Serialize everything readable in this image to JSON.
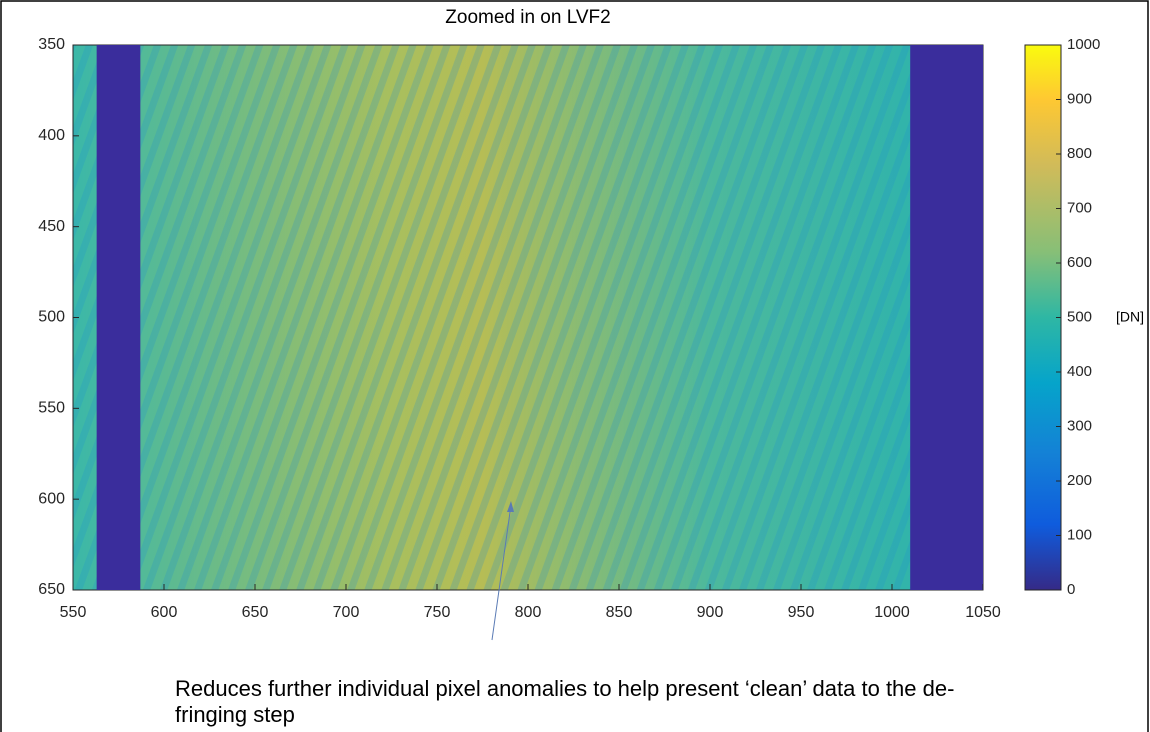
{
  "chart_data": {
    "type": "heatmap",
    "title": "Zoomed in on LVF2",
    "xlim": [
      550,
      1050
    ],
    "xticks": [
      550,
      600,
      650,
      700,
      750,
      800,
      850,
      900,
      950,
      1000,
      1050
    ],
    "ylim": [
      650,
      350
    ],
    "yticks": [
      350,
      400,
      450,
      500,
      550,
      600,
      650
    ],
    "masked_columns": [
      [
        563,
        587
      ],
      [
        1010,
        1050
      ]
    ],
    "colormap": "parula",
    "clim": [
      0,
      1000
    ],
    "cticks": [
      0,
      100,
      200,
      300,
      400,
      500,
      600,
      700,
      800,
      900,
      1000
    ],
    "colorbar_label": "[DN]",
    "annotation": [
      "Reduces further individual pixel anomalies to help present ‘clean’ data to the de-",
      "fringing step"
    ]
  }
}
